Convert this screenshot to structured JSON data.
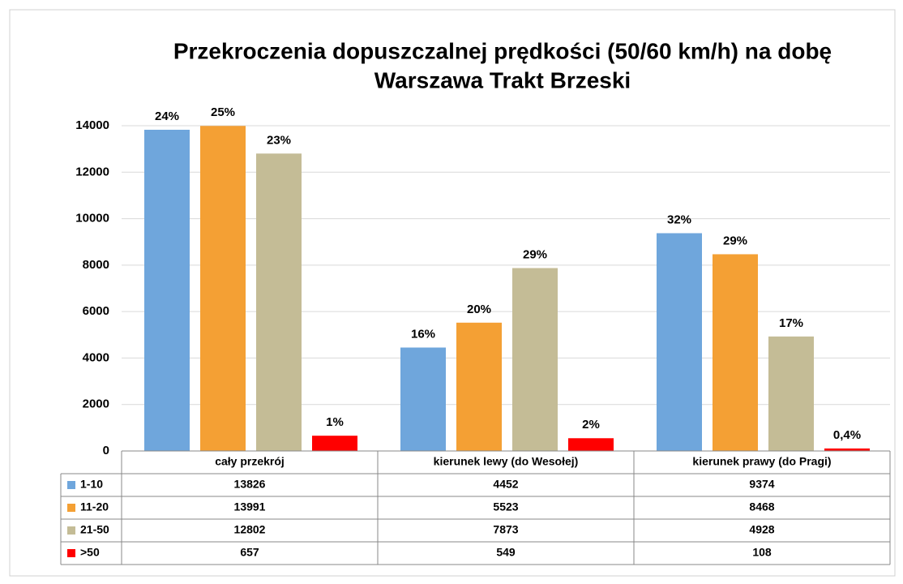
{
  "chart_data": {
    "type": "bar",
    "title": [
      "Przekroczenia dopuszczalnej prędkości (50/60 km/h) na dobę",
      "Warszawa Trakt Brzeski"
    ],
    "categories": [
      "cały przekrój",
      "kierunek lewy (do Wesołej)",
      "kierunek prawy (do Pragi)"
    ],
    "series": [
      {
        "name": "1-10",
        "color": "#6fa6dc",
        "values": [
          13826,
          4452,
          9374
        ],
        "data_labels": [
          "24%",
          "16%",
          "32%"
        ]
      },
      {
        "name": "11-20",
        "color": "#f4a034",
        "values": [
          13991,
          5523,
          8468
        ],
        "data_labels": [
          "25%",
          "20%",
          "29%"
        ]
      },
      {
        "name": "21-50",
        "color": "#c4bc96",
        "values": [
          12802,
          7873,
          4928
        ],
        "data_labels": [
          "23%",
          "29%",
          "17%"
        ]
      },
      {
        "name": ">50",
        "color": "#ff0000",
        "values": [
          657,
          549,
          108
        ],
        "data_labels": [
          "1%",
          "2%",
          "0,4%"
        ]
      }
    ],
    "ylim": [
      0,
      14000
    ],
    "yticks": [
      0,
      2000,
      4000,
      6000,
      8000,
      10000,
      12000,
      14000
    ],
    "grid": true
  }
}
